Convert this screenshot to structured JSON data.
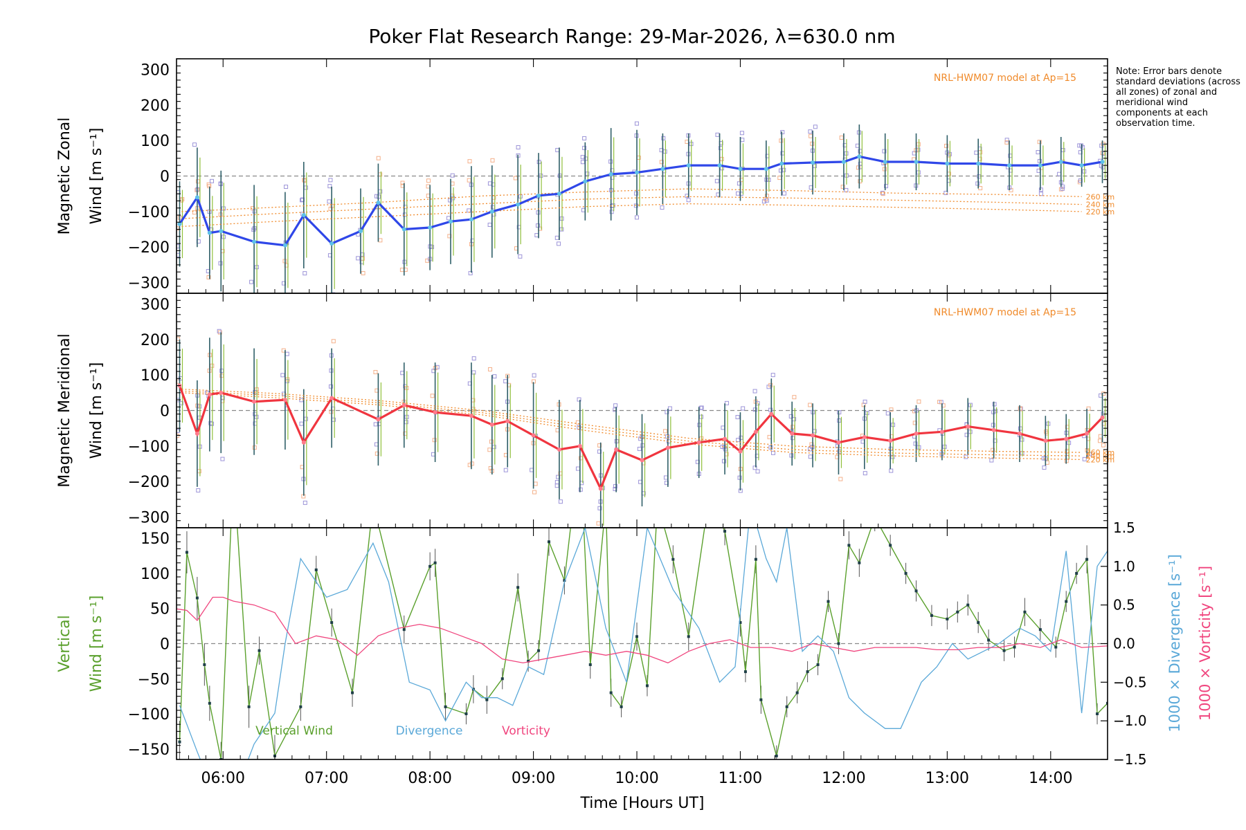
{
  "chart_data": {
    "type": "line",
    "title": "Poker Flat Research Range: 29-Mar-2026, λ=630.0 nm",
    "note": "Note: Error bars denote standard deviations (across all zones) of zonal and meridional wind components at each observation time.",
    "xlabel": "Time [Hours UT]",
    "xlim": [
      5.55,
      14.55
    ],
    "xticks": [
      6,
      7,
      8,
      9,
      10,
      11,
      12,
      13,
      14
    ],
    "xtick_labels": [
      "06:00",
      "07:00",
      "08:00",
      "09:00",
      "10:00",
      "11:00",
      "12:00",
      "13:00",
      "14:00"
    ],
    "colors": {
      "zonal": "#2f47e8",
      "meridional": "#f0353f",
      "vertical": "#5aa02c",
      "divergence": "#5aa8d8",
      "vorticity": "#f0457e",
      "model": "#f08a2a",
      "zone_box": "#9c94d8",
      "zero_line": "#888888",
      "error_bar": "#555555"
    },
    "panels": [
      {
        "id": "zonal",
        "ylabel_line1": "Magnetic Zonal",
        "ylabel_line2": "Wind [m s⁻¹]",
        "ylim": [
          -330,
          330
        ],
        "yticks": [
          -300,
          -200,
          -100,
          0,
          100,
          200,
          300
        ],
        "model_label": "NRL-HWM07 model at Ap=15",
        "model_curves": [
          {
            "label": "260 km",
            "x": [
              5.6,
              6.5,
              7.5,
              8.5,
              9.5,
              10.5,
              11.5,
              12.5,
              13.5,
              14.3
            ],
            "y": [
              -100,
              -88,
              -74,
              -56,
              -45,
              -36,
              -41,
              -48,
              -52,
              -58
            ]
          },
          {
            "label": "240 km",
            "x": [
              5.6,
              6.5,
              7.5,
              8.5,
              9.5,
              10.5,
              11.5,
              12.5,
              13.5,
              14.3
            ],
            "y": [
              -120,
              -106,
              -92,
              -78,
              -65,
              -58,
              -62,
              -68,
              -74,
              -80
            ]
          },
          {
            "label": "220 km",
            "x": [
              5.6,
              6.5,
              7.5,
              8.5,
              9.5,
              10.5,
              11.5,
              12.5,
              13.5,
              14.3
            ],
            "y": [
              -142,
              -128,
              -114,
              -100,
              -86,
              -78,
              -82,
              -88,
              -94,
              -100
            ]
          }
        ],
        "series": {
          "name": "Zonal wind",
          "x": [
            5.58,
            5.75,
            5.87,
            5.98,
            6.3,
            6.6,
            6.78,
            7.05,
            7.33,
            7.5,
            7.75,
            8.0,
            8.2,
            8.4,
            8.6,
            8.85,
            9.05,
            9.25,
            9.5,
            9.75,
            10.0,
            10.25,
            10.5,
            10.8,
            11.0,
            11.25,
            11.4,
            11.7,
            12.0,
            12.15,
            12.4,
            12.7,
            13.0,
            13.3,
            13.6,
            13.9,
            14.1,
            14.3,
            14.5
          ],
          "y": [
            -135,
            -60,
            -160,
            -155,
            -185,
            -195,
            -110,
            -190,
            -155,
            -75,
            -150,
            -145,
            -128,
            -122,
            -100,
            -80,
            -55,
            -50,
            -15,
            5,
            10,
            20,
            30,
            30,
            20,
            20,
            35,
            38,
            40,
            55,
            40,
            40,
            35,
            35,
            30,
            30,
            40,
            30,
            40
          ],
          "err": [
            120,
            140,
            130,
            170,
            160,
            150,
            150,
            160,
            120,
            110,
            130,
            120,
            120,
            150,
            130,
            140,
            120,
            130,
            110,
            130,
            120,
            100,
            90,
            90,
            90,
            80,
            90,
            90,
            80,
            90,
            80,
            80,
            80,
            70,
            70,
            70,
            70,
            60,
            60
          ]
        }
      },
      {
        "id": "meridional",
        "ylabel_line1": "Magnetic Meridional",
        "ylabel_line2": "Wind [m s⁻¹]",
        "ylim": [
          -330,
          330
        ],
        "yticks": [
          -300,
          -200,
          -100,
          0,
          100,
          200,
          300
        ],
        "model_label": "NRL-HWM07 model at Ap=15",
        "model_curves": [
          {
            "label": "260 km",
            "x": [
              5.6,
              6.5,
              7.5,
              8.5,
              9.5,
              10.5,
              11.5,
              12.5,
              13.5,
              14.3
            ],
            "y": [
              60,
              48,
              28,
              0,
              -40,
              -78,
              -100,
              -110,
              -115,
              -118
            ]
          },
          {
            "label": "240 km",
            "x": [
              5.6,
              6.5,
              7.5,
              8.5,
              9.5,
              10.5,
              11.5,
              12.5,
              13.5,
              14.3
            ],
            "y": [
              55,
              42,
              22,
              -6,
              -48,
              -86,
              -110,
              -120,
              -125,
              -128
            ]
          },
          {
            "label": "220 km",
            "x": [
              5.6,
              6.5,
              7.5,
              8.5,
              9.5,
              10.5,
              11.5,
              12.5,
              13.5,
              14.3
            ],
            "y": [
              50,
              36,
              16,
              -12,
              -56,
              -94,
              -118,
              -128,
              -134,
              -138
            ]
          }
        ],
        "series": {
          "name": "Meridional wind",
          "x": [
            5.58,
            5.75,
            5.87,
            5.98,
            6.3,
            6.6,
            6.78,
            7.05,
            7.5,
            7.75,
            8.05,
            8.4,
            8.6,
            8.75,
            9.0,
            9.25,
            9.45,
            9.65,
            9.8,
            10.05,
            10.3,
            10.6,
            10.85,
            11.0,
            11.15,
            11.3,
            11.5,
            11.7,
            11.95,
            12.2,
            12.45,
            12.7,
            12.95,
            13.2,
            13.45,
            13.7,
            13.95,
            14.15,
            14.35,
            14.5
          ],
          "y": [
            70,
            -65,
            45,
            50,
            25,
            30,
            -90,
            35,
            -25,
            15,
            -5,
            -15,
            -40,
            -30,
            -70,
            -110,
            -100,
            -220,
            -110,
            -140,
            -105,
            -90,
            -80,
            -115,
            -60,
            -10,
            -65,
            -70,
            -90,
            -75,
            -85,
            -65,
            -60,
            -45,
            -55,
            -65,
            -85,
            -80,
            -65,
            -20
          ],
          "err": [
            130,
            150,
            160,
            170,
            150,
            140,
            150,
            140,
            130,
            120,
            140,
            150,
            140,
            130,
            150,
            140,
            130,
            130,
            120,
            130,
            110,
            100,
            100,
            110,
            100,
            100,
            90,
            90,
            90,
            90,
            80,
            80,
            80,
            80,
            80,
            80,
            70,
            70,
            70,
            70
          ]
        }
      },
      {
        "id": "vertical",
        "ylabel_line1": "Vertical",
        "ylabel_line2": "Wind [m s⁻¹]",
        "ylabel_right_1": "1000 × Divergence [s⁻¹]",
        "ylabel_right_2": "1000 × Vorticity [s⁻¹]",
        "ylim": [
          -165,
          165
        ],
        "yticks": [
          -150,
          -100,
          -50,
          0,
          50,
          100,
          150
        ],
        "y2lim": [
          -1.5,
          1.5
        ],
        "y2ticks": [
          -1.5,
          -1.0,
          -0.5,
          0.0,
          0.5,
          1.0,
          1.5
        ],
        "y2tick_labels": [
          "−1.5",
          "−1.0",
          "−0.5",
          "0.0",
          "0.5",
          "1.0",
          "1.5"
        ],
        "legend": [
          "Vertical Wind",
          "Divergence",
          "Vorticity"
        ],
        "series": [
          {
            "name": "Vertical Wind",
            "axis": "left",
            "x": [
              5.58,
              5.65,
              5.75,
              5.82,
              5.87,
              5.98,
              6.1,
              6.25,
              6.35,
              6.5,
              6.75,
              6.9,
              7.05,
              7.25,
              7.45,
              7.75,
              8.0,
              8.05,
              8.15,
              8.35,
              8.42,
              8.55,
              8.7,
              8.85,
              8.95,
              9.05,
              9.15,
              9.3,
              9.45,
              9.55,
              9.7,
              9.75,
              9.85,
              10.0,
              10.1,
              10.2,
              10.35,
              10.5,
              10.7,
              10.85,
              11.0,
              11.05,
              11.15,
              11.2,
              11.35,
              11.45,
              11.55,
              11.65,
              11.75,
              11.85,
              11.95,
              12.05,
              12.15,
              12.3,
              12.45,
              12.6,
              12.7,
              12.85,
              13.0,
              13.1,
              13.2,
              13.3,
              13.4,
              13.55,
              13.65,
              13.75,
              13.9,
              14.05,
              14.15,
              14.25,
              14.35,
              14.45,
              14.55
            ],
            "y": [
              -140,
              130,
              65,
              -30,
              -85,
              -165,
              250,
              -90,
              -10,
              -160,
              -90,
              105,
              30,
              -70,
              200,
              20,
              110,
              115,
              -90,
              -100,
              -65,
              -80,
              -50,
              80,
              -25,
              -10,
              145,
              90,
              280,
              -30,
              200,
              -70,
              -90,
              10,
              -60,
              200,
              120,
              10,
              210,
              160,
              30,
              -40,
              120,
              -80,
              -160,
              -90,
              -70,
              -40,
              -30,
              60,
              0,
              140,
              115,
              180,
              140,
              100,
              75,
              40,
              35,
              45,
              55,
              30,
              5,
              -10,
              -5,
              45,
              20,
              -5,
              60,
              100,
              120,
              -100,
              -85
            ],
            "err": [
              30,
              30,
              30,
              30,
              25,
              25,
              30,
              30,
              20,
              30,
              20,
              20,
              20,
              20,
              30,
              20,
              20,
              20,
              20,
              15,
              20,
              20,
              15,
              20,
              15,
              15,
              20,
              20,
              20,
              20,
              20,
              20,
              15,
              20,
              15,
              20,
              20,
              20,
              20,
              20,
              20,
              15,
              20,
              20,
              15,
              15,
              15,
              15,
              15,
              15,
              15,
              20,
              20,
              20,
              15,
              15,
              15,
              15,
              15,
              15,
              15,
              15,
              15,
              15,
              15,
              20,
              15,
              15,
              15,
              15,
              20,
              15,
              15
            ]
          },
          {
            "name": "Divergence",
            "axis": "right",
            "x": [
              5.58,
              5.75,
              5.9,
              6.1,
              6.3,
              6.5,
              6.6,
              6.75,
              7.0,
              7.2,
              7.45,
              7.6,
              7.8,
              8.0,
              8.15,
              8.35,
              8.5,
              8.65,
              8.8,
              8.95,
              9.1,
              9.3,
              9.5,
              9.7,
              9.9,
              10.1,
              10.35,
              10.6,
              10.8,
              10.95,
              11.1,
              11.25,
              11.35,
              11.45,
              11.6,
              11.75,
              11.9,
              12.05,
              12.2,
              12.4,
              12.55,
              12.75,
              12.9,
              13.05,
              13.2,
              13.35,
              13.5,
              13.7,
              13.85,
              14.0,
              14.15,
              14.3,
              14.45,
              14.55
            ],
            "y": [
              -0.8,
              -1.4,
              -1.9,
              -2.0,
              -1.3,
              -0.9,
              0.0,
              1.1,
              0.6,
              0.7,
              1.3,
              0.8,
              -0.5,
              -0.6,
              -1.0,
              -0.5,
              -0.7,
              -0.7,
              -0.8,
              -0.3,
              -0.4,
              0.8,
              1.5,
              0.2,
              -0.5,
              1.5,
              0.7,
              0.2,
              -0.5,
              -0.3,
              1.8,
              1.1,
              0.8,
              1.5,
              -0.1,
              0.1,
              -0.1,
              -0.7,
              -0.9,
              -1.1,
              -1.1,
              -0.5,
              -0.3,
              0.0,
              -0.2,
              -0.1,
              0.0,
              0.2,
              0.1,
              -0.1,
              1.2,
              -0.9,
              1.0,
              1.2
            ]
          },
          {
            "name": "Vorticity",
            "axis": "right",
            "x": [
              5.55,
              5.65,
              5.75,
              5.9,
              6.0,
              6.1,
              6.3,
              6.5,
              6.7,
              6.9,
              7.1,
              7.3,
              7.5,
              7.7,
              7.9,
              8.1,
              8.3,
              8.5,
              8.7,
              8.9,
              9.1,
              9.3,
              9.5,
              9.7,
              9.9,
              10.1,
              10.3,
              10.5,
              10.7,
              10.9,
              11.1,
              11.3,
              11.5,
              11.7,
              11.9,
              12.1,
              12.3,
              12.5,
              12.7,
              12.9,
              13.1,
              13.3,
              13.5,
              13.7,
              13.9,
              14.1,
              14.3,
              14.55
            ],
            "y": [
              0.45,
              0.43,
              0.3,
              0.6,
              0.6,
              0.55,
              0.5,
              0.4,
              0.0,
              0.1,
              0.05,
              -0.15,
              0.1,
              0.2,
              0.25,
              0.2,
              0.1,
              0.0,
              -0.2,
              -0.25,
              -0.2,
              -0.15,
              -0.1,
              -0.15,
              -0.1,
              -0.15,
              -0.25,
              -0.1,
              0.0,
              0.05,
              -0.05,
              -0.05,
              -0.1,
              0.0,
              -0.05,
              -0.1,
              -0.05,
              -0.05,
              -0.05,
              -0.08,
              -0.08,
              -0.05,
              -0.05,
              0.0,
              -0.05,
              0.05,
              -0.05,
              -0.03
            ]
          }
        ]
      }
    ]
  }
}
